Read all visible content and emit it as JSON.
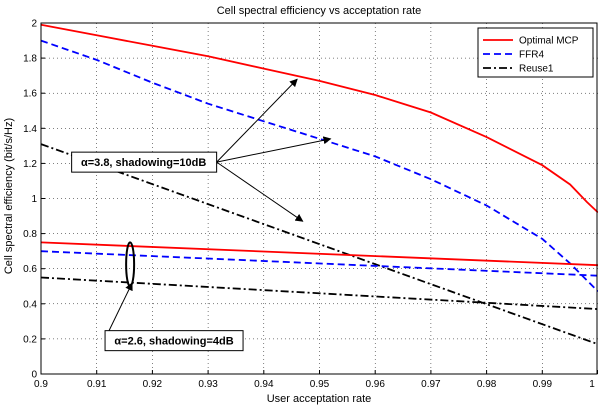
{
  "chart_data": {
    "type": "line",
    "title": "Cell spectral efficiency vs acceptation rate",
    "xlabel": "User acceptation rate",
    "ylabel": "Cell spectral efficiency (bit/s/Hz)",
    "xlim": [
      0.9,
      1.0
    ],
    "ylim": [
      0,
      2
    ],
    "xticks": [
      "0.9",
      "0.91",
      "0.92",
      "0.93",
      "0.94",
      "0.95",
      "0.96",
      "0.97",
      "0.98",
      "0.99",
      "1"
    ],
    "yticks": [
      "0",
      "0.2",
      "0.4",
      "0.6",
      "0.8",
      "1",
      "1.2",
      "1.4",
      "1.6",
      "1.8",
      "2"
    ],
    "grid": true,
    "legend_position": "top-right",
    "legend": [
      {
        "name": "Optimal MCP",
        "color": "#ff0000",
        "style": "solid"
      },
      {
        "name": "FFR4",
        "color": "#0000ff",
        "style": "dashed"
      },
      {
        "name": "Reuse1",
        "color": "#000000",
        "style": "dashdot"
      }
    ],
    "series": [
      {
        "group": "alpha3.8",
        "legend_index": 0,
        "x": [
          0.9,
          0.91,
          0.92,
          0.93,
          0.94,
          0.95,
          0.96,
          0.966,
          0.97,
          0.98,
          0.99,
          0.995,
          0.998,
          1.0
        ],
        "y": [
          1.99,
          1.93,
          1.87,
          1.81,
          1.74,
          1.67,
          1.59,
          1.53,
          1.49,
          1.35,
          1.19,
          1.08,
          0.98,
          0.92
        ]
      },
      {
        "group": "alpha3.8",
        "legend_index": 1,
        "x": [
          0.9,
          0.91,
          0.92,
          0.93,
          0.94,
          0.95,
          0.96,
          0.97,
          0.98,
          0.99,
          0.995,
          1.0
        ],
        "y": [
          1.9,
          1.79,
          1.66,
          1.54,
          1.44,
          1.34,
          1.24,
          1.11,
          0.96,
          0.77,
          0.63,
          0.47
        ]
      },
      {
        "group": "alpha3.8",
        "legend_index": 2,
        "x": [
          0.9,
          1.0
        ],
        "y": [
          1.31,
          0.17
        ]
      },
      {
        "group": "alpha2.6",
        "legend_index": 0,
        "x": [
          0.9,
          1.0
        ],
        "y": [
          0.75,
          0.62
        ]
      },
      {
        "group": "alpha2.6",
        "legend_index": 1,
        "x": [
          0.9,
          1.0
        ],
        "y": [
          0.7,
          0.56
        ]
      },
      {
        "group": "alpha2.6",
        "legend_index": 2,
        "x": [
          0.9,
          1.0
        ],
        "y": [
          0.55,
          0.37
        ]
      }
    ],
    "annotations": [
      {
        "text": "α=3.8, shadowing=10dB",
        "box": [
          0.9055,
          1.23
        ],
        "arrows": [
          [
            0.946,
            1.68
          ],
          [
            0.952,
            1.34
          ],
          [
            0.947,
            0.87
          ]
        ]
      },
      {
        "text": "α=2.6, shadowing=4dB",
        "box": [
          0.9115,
          0.19
        ],
        "arrows": [
          [
            0.916,
            0.53
          ]
        ]
      }
    ]
  }
}
